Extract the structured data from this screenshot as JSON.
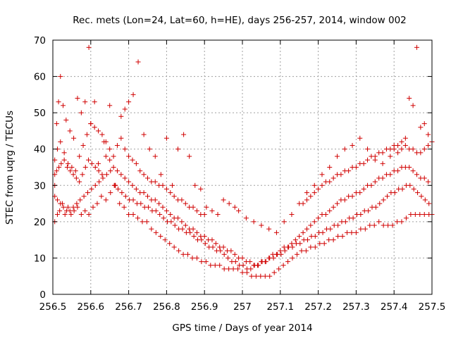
{
  "chart_data": {
    "type": "scatter",
    "title": "Rec. mets (Lon=24, Lat=60, h=HE), days 256-257, 2014, window 002",
    "xlabel": "GPS time / Days of year 2014",
    "ylabel": "STEC from uqrg / TECUs",
    "xlim": [
      256.5,
      257.5
    ],
    "ylim": [
      0,
      70
    ],
    "xticks": [
      "256.5",
      "256.6",
      "256.7",
      "256.8",
      "256.9",
      "257",
      "257.1",
      "257.2",
      "257.3",
      "257.4",
      "257.5"
    ],
    "xtick_values": [
      256.5,
      256.6,
      256.7,
      256.8,
      256.9,
      257.0,
      257.1,
      257.2,
      257.3,
      257.4,
      257.5
    ],
    "yticks": [
      "0",
      "10",
      "20",
      "30",
      "40",
      "50",
      "60",
      "70"
    ],
    "ytick_values": [
      0,
      10,
      20,
      30,
      40,
      50,
      60,
      70
    ],
    "grid": true,
    "marker": "plus",
    "color": "#d00000",
    "series": [
      {
        "x": [
          256.505,
          256.512,
          256.518,
          256.525,
          256.532,
          256.54,
          256.548,
          256.556,
          256.565,
          256.575,
          256.585,
          256.595,
          256.606,
          256.617,
          256.628,
          256.64,
          256.652,
          256.664,
          256.676,
          256.688,
          256.7,
          256.712,
          256.724,
          256.736,
          256.748,
          256.76,
          256.772,
          256.784,
          256.796,
          256.808,
          256.82,
          256.832,
          256.844,
          256.856,
          256.868,
          256.88,
          256.892,
          256.904,
          256.916,
          256.928,
          256.94,
          256.952,
          256.964,
          256.976,
          256.988,
          257.0,
          257.012,
          257.024,
          257.036,
          257.048,
          257.06,
          257.072,
          257.084,
          257.096,
          257.108,
          257.12,
          257.132,
          257.144,
          257.156,
          257.168,
          257.18,
          257.192,
          257.204,
          257.216,
          257.228,
          257.24,
          257.252,
          257.264,
          257.276,
          257.288,
          257.3,
          257.312,
          257.324,
          257.336,
          257.348,
          257.36,
          257.372,
          257.384,
          257.396,
          257.408,
          257.42,
          257.432,
          257.444,
          257.456,
          257.468,
          257.48,
          257.492,
          257.5
        ],
        "y": [
          20,
          22,
          23,
          25,
          22,
          24,
          22,
          23,
          24,
          22,
          23,
          22,
          24,
          25,
          27,
          26,
          28,
          30,
          25,
          24,
          22,
          22,
          21,
          20,
          20,
          18,
          17,
          16,
          15,
          14,
          13,
          12,
          11,
          11,
          10,
          10,
          9,
          9,
          8,
          8,
          8,
          7,
          7,
          7,
          7,
          6,
          6,
          5,
          5,
          5,
          5,
          5,
          6,
          7,
          8,
          9,
          10,
          11,
          12,
          12,
          13,
          13,
          14,
          14,
          15,
          15,
          16,
          16,
          17,
          17,
          17,
          18,
          18,
          19,
          19,
          20,
          19,
          19,
          19,
          20,
          20,
          21,
          22,
          22,
          22,
          22,
          22,
          22
        ]
      },
      {
        "x": [
          256.505,
          256.512,
          256.52,
          256.528,
          256.536,
          256.545,
          256.554,
          256.563,
          256.572,
          256.582,
          256.592,
          256.602,
          256.612,
          256.622,
          256.632,
          256.642,
          256.652,
          256.662,
          256.672,
          256.682,
          256.692,
          256.702,
          256.712,
          256.722,
          256.732,
          256.742,
          256.752,
          256.762,
          256.772,
          256.782,
          256.792,
          256.802,
          256.812,
          256.822,
          256.832,
          256.842,
          256.852,
          256.862,
          256.872,
          256.882,
          256.892,
          256.902,
          256.912,
          256.922,
          256.932,
          256.942,
          256.952,
          256.962,
          256.972,
          256.982,
          256.992,
          257.002,
          257.012,
          257.022,
          257.032,
          257.042,
          257.052,
          257.062,
          257.072,
          257.082,
          257.092,
          257.102,
          257.112,
          257.122,
          257.132,
          257.142,
          257.152,
          257.162,
          257.172,
          257.182,
          257.192,
          257.202,
          257.212,
          257.222,
          257.232,
          257.242,
          257.252,
          257.262,
          257.272,
          257.282,
          257.292,
          257.302,
          257.312,
          257.322,
          257.332,
          257.342,
          257.352,
          257.362,
          257.372,
          257.382,
          257.392,
          257.402,
          257.412,
          257.422,
          257.432,
          257.442,
          257.452,
          257.462,
          257.472,
          257.482,
          257.492
        ],
        "y": [
          27,
          26,
          25,
          24,
          23,
          23,
          24,
          25,
          26,
          27,
          28,
          29,
          30,
          31,
          32,
          33,
          34,
          30,
          29,
          28,
          27,
          26,
          26,
          25,
          25,
          24,
          24,
          23,
          23,
          22,
          21,
          20,
          20,
          19,
          18,
          18,
          17,
          17,
          16,
          15,
          15,
          14,
          13,
          13,
          12,
          12,
          11,
          10,
          9,
          9,
          8,
          8,
          7,
          7,
          8,
          8,
          9,
          9,
          10,
          10,
          11,
          11,
          12,
          13,
          13,
          14,
          14,
          15,
          15,
          16,
          16,
          17,
          17,
          18,
          18,
          19,
          19,
          20,
          20,
          21,
          21,
          22,
          22,
          23,
          23,
          24,
          24,
          25,
          26,
          27,
          28,
          28,
          29,
          29,
          30,
          30,
          29,
          28,
          27,
          26,
          25
        ]
      },
      {
        "x": [
          256.505,
          256.51,
          256.516,
          256.522,
          256.53,
          256.538,
          256.546,
          256.554,
          256.562,
          256.57,
          256.578,
          256.586,
          256.594,
          256.603,
          256.612,
          256.621,
          256.63,
          256.64,
          256.65,
          256.66,
          256.67,
          256.68,
          256.69,
          256.7,
          256.71,
          256.72,
          256.73,
          256.74,
          256.75,
          256.76,
          256.77,
          256.78,
          256.79,
          256.8,
          256.81,
          256.82,
          256.83,
          256.84,
          256.85,
          256.86,
          256.87,
          256.88,
          256.89,
          256.9,
          256.91,
          256.92,
          256.93,
          256.94,
          256.95,
          256.96,
          256.97,
          256.98,
          256.99,
          257.0,
          257.01,
          257.02,
          257.03,
          257.04,
          257.05,
          257.06,
          257.07,
          257.08,
          257.09,
          257.1,
          257.11,
          257.12,
          257.13,
          257.14,
          257.15,
          257.16,
          257.17,
          257.18,
          257.19,
          257.2,
          257.21,
          257.22,
          257.23,
          257.24,
          257.25,
          257.26,
          257.27,
          257.28,
          257.29,
          257.3,
          257.31,
          257.32,
          257.33,
          257.34,
          257.35,
          257.36,
          257.37,
          257.38,
          257.39,
          257.4,
          257.41,
          257.42,
          257.43,
          257.44,
          257.45,
          257.46,
          257.47,
          257.48,
          257.49
        ],
        "y": [
          33,
          34,
          35,
          36,
          37,
          35,
          34,
          33,
          32,
          31,
          33,
          35,
          37,
          36,
          35,
          34,
          33,
          38,
          37,
          35,
          34,
          33,
          32,
          31,
          30,
          29,
          28,
          28,
          27,
          26,
          26,
          25,
          24,
          23,
          22,
          21,
          21,
          20,
          19,
          18,
          18,
          17,
          16,
          16,
          15,
          15,
          14,
          13,
          13,
          12,
          12,
          11,
          10,
          10,
          9,
          9,
          8,
          8,
          9,
          9,
          10,
          11,
          11,
          12,
          13,
          13,
          14,
          15,
          16,
          17,
          18,
          19,
          20,
          21,
          22,
          22,
          23,
          24,
          25,
          26,
          26,
          27,
          27,
          28,
          28,
          29,
          30,
          30,
          31,
          32,
          32,
          33,
          33,
          34,
          34,
          35,
          35,
          35,
          34,
          33,
          32,
          32,
          31
        ]
      },
      {
        "x": [
          256.505,
          256.512,
          256.52,
          256.53,
          256.54,
          256.55,
          256.56,
          256.57,
          256.58,
          256.59,
          256.6,
          256.61,
          256.62,
          256.63,
          256.64,
          256.65,
          256.66,
          256.67,
          256.68,
          256.69,
          256.7,
          256.71,
          256.72,
          256.73,
          256.74,
          256.75,
          256.76,
          256.77,
          256.78,
          256.79,
          256.8,
          256.81,
          256.82,
          256.83,
          256.84,
          256.85,
          256.86,
          256.87,
          256.88,
          256.89,
          256.9,
          257.16,
          257.17,
          257.18,
          257.19,
          257.2,
          257.21,
          257.22,
          257.23,
          257.24,
          257.25,
          257.26,
          257.27,
          257.28,
          257.29,
          257.3,
          257.31,
          257.32,
          257.33,
          257.34,
          257.35,
          257.36,
          257.37,
          257.38,
          257.39,
          257.4,
          257.41,
          257.42,
          257.43,
          257.44,
          257.45,
          257.46,
          257.47,
          257.48,
          257.49,
          257.5
        ],
        "y": [
          37,
          40,
          42,
          39,
          36,
          35,
          34,
          38,
          41,
          44,
          47,
          46,
          45,
          44,
          42,
          40,
          38,
          41,
          43,
          40,
          38,
          37,
          36,
          34,
          33,
          32,
          31,
          31,
          30,
          30,
          29,
          28,
          27,
          26,
          26,
          25,
          24,
          24,
          23,
          22,
          22,
          25,
          26,
          27,
          28,
          29,
          30,
          31,
          31,
          32,
          33,
          33,
          34,
          34,
          35,
          35,
          36,
          36,
          37,
          38,
          38,
          39,
          39,
          40,
          40,
          41,
          41,
          42,
          41,
          40,
          40,
          39,
          39,
          40,
          41,
          42
        ]
      },
      {
        "x": [
          256.505,
          256.51,
          256.515,
          256.52,
          256.527,
          256.535,
          256.545,
          256.555,
          256.565,
          256.575,
          256.585,
          256.595,
          256.6,
          256.61,
          256.62,
          256.635,
          256.65,
          256.665,
          256.68,
          256.69,
          256.7,
          256.712,
          256.725,
          256.74,
          256.755,
          256.77,
          256.785,
          256.8,
          256.815,
          256.83,
          256.845,
          256.86,
          256.875,
          256.89,
          256.905,
          256.92,
          256.935,
          256.95,
          256.965,
          256.98,
          256.99,
          257.01,
          257.03,
          257.05,
          257.07,
          257.09,
          257.11,
          257.13,
          257.15,
          257.17,
          257.19,
          257.21,
          257.23,
          257.25,
          257.27,
          257.29,
          257.31,
          257.33,
          257.35,
          257.37,
          257.39,
          257.4,
          257.41,
          257.42,
          257.43,
          257.44,
          257.45,
          257.46,
          257.47,
          257.48,
          257.49
        ],
        "y": [
          30,
          47,
          53,
          60,
          52,
          48,
          45,
          43,
          54,
          50,
          53,
          68,
          47,
          53,
          36,
          42,
          52,
          30,
          49,
          51,
          53,
          55,
          64,
          44,
          40,
          38,
          33,
          43,
          30,
          40,
          44,
          38,
          30,
          29,
          24,
          23,
          22,
          26,
          25,
          24,
          23,
          21,
          20,
          19,
          18,
          17,
          20,
          22,
          25,
          28,
          30,
          33,
          35,
          38,
          40,
          41,
          43,
          40,
          37,
          36,
          38,
          40,
          39,
          40,
          43,
          54,
          52,
          68,
          46,
          47,
          44
        ]
      }
    ]
  }
}
